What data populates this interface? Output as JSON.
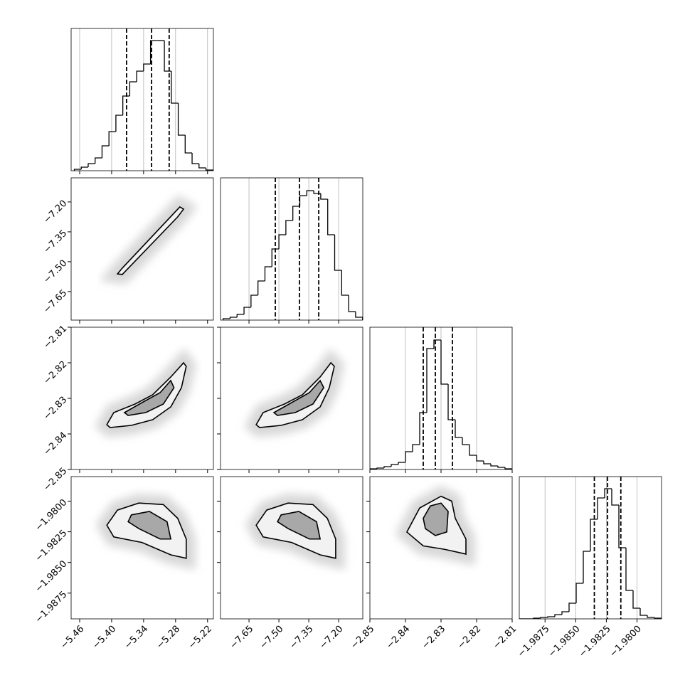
{
  "chart_data": {
    "type": "corner",
    "color": "#000000",
    "params": [
      {
        "lim": [
          -5.476,
          -5.209
        ],
        "ticks": [
          {
            "value": -5.46,
            "label": "−5.46"
          },
          {
            "value": -5.4,
            "label": "−5.40"
          },
          {
            "value": -5.34,
            "label": "−5.34"
          },
          {
            "value": -5.28,
            "label": "−5.28"
          },
          {
            "value": -5.22,
            "label": "−5.22"
          }
        ],
        "hist_ylim": [
          0,
          200
        ],
        "bins": [
          -5.47,
          -5.457,
          -5.444,
          -5.431,
          -5.418,
          -5.405,
          -5.392,
          -5.379,
          -5.366,
          -5.353,
          -5.34,
          -5.327,
          -5.314,
          -5.301,
          -5.288,
          -5.275,
          -5.262,
          -5.249,
          -5.236,
          -5.223,
          -5.21
        ],
        "values": [
          2,
          5,
          10,
          18,
          35,
          55,
          78,
          105,
          125,
          140,
          150,
          183,
          183,
          140,
          95,
          50,
          25,
          10,
          4,
          1
        ],
        "quantiles": [
          -5.372,
          -5.325,
          -5.292
        ]
      },
      {
        "lim": [
          -7.793,
          -7.079
        ],
        "ticks": [
          {
            "value": -7.65,
            "label": "−7.65"
          },
          {
            "value": -7.5,
            "label": "−7.50"
          },
          {
            "value": -7.35,
            "label": "−7.35"
          },
          {
            "value": -7.2,
            "label": "−7.20"
          }
        ],
        "hist_ylim": [
          0,
          200
        ],
        "bins": [
          -7.78,
          -7.745,
          -7.71,
          -7.675,
          -7.64,
          -7.605,
          -7.57,
          -7.535,
          -7.5,
          -7.465,
          -7.43,
          -7.395,
          -7.36,
          -7.325,
          -7.29,
          -7.255,
          -7.22,
          -7.185,
          -7.15,
          -7.115,
          -7.08
        ],
        "values": [
          2,
          4,
          8,
          18,
          35,
          55,
          75,
          100,
          120,
          140,
          160,
          175,
          182,
          178,
          170,
          120,
          70,
          35,
          12,
          4
        ],
        "quantiles": [
          -7.518,
          -7.397,
          -7.3
        ]
      },
      {
        "lim": [
          -2.85,
          -2.81
        ],
        "ticks": [
          {
            "value": -2.85,
            "label": "−2.85"
          },
          {
            "value": -2.84,
            "label": "−2.84"
          },
          {
            "value": -2.83,
            "label": "−2.83"
          },
          {
            "value": -2.82,
            "label": "−2.82"
          },
          {
            "value": -2.81,
            "label": "−2.81"
          }
        ],
        "hist_ylim": [
          0,
          200
        ],
        "bins": [
          -2.85,
          -2.848,
          -2.846,
          -2.844,
          -2.842,
          -2.84,
          -2.838,
          -2.836,
          -2.834,
          -2.832,
          -2.83,
          -2.828,
          -2.826,
          -2.824,
          -2.822,
          -2.82,
          -2.818,
          -2.816,
          -2.814,
          -2.812,
          -2.81
        ],
        "values": [
          1,
          2,
          4,
          7,
          10,
          25,
          35,
          80,
          170,
          182,
          120,
          70,
          45,
          35,
          20,
          12,
          8,
          5,
          3,
          1
        ],
        "quantiles": [
          -2.835,
          -2.8316,
          -2.8268
        ]
      },
      {
        "lim": [
          -1.9896,
          -1.978
        ],
        "ticks": [
          {
            "value": -1.9875,
            "label": "−1.9875"
          },
          {
            "value": -1.985,
            "label": "−1.9850"
          },
          {
            "value": -1.9825,
            "label": "−1.9825"
          },
          {
            "value": -1.98,
            "label": "−1.9800"
          }
        ],
        "hist_ylim": [
          0,
          200
        ],
        "bins": [
          -1.9896,
          -1.98902,
          -1.98844,
          -1.98786,
          -1.98728,
          -1.9867,
          -1.98612,
          -1.98554,
          -1.98496,
          -1.98438,
          -1.9838,
          -1.98322,
          -1.98264,
          -1.98206,
          -1.98148,
          -1.9809,
          -1.98032,
          -1.97974,
          -1.97916,
          -1.97858,
          -1.978
        ],
        "values": [
          0,
          0,
          1,
          2,
          3,
          6,
          10,
          22,
          50,
          95,
          140,
          170,
          183,
          160,
          100,
          40,
          15,
          5,
          2,
          1
        ],
        "quantiles": [
          -1.98348,
          -1.9824,
          -1.98132
        ]
      }
    ],
    "pairs": [
      [
        {
          "contours": [
            {
              "x": [
                -5.389,
                -5.38,
                -5.272,
                -5.265,
                -5.276,
                -5.38
              ],
              "y": [
                -7.561,
                -7.532,
                -7.225,
                -7.236,
                -7.275,
                -7.564
              ]
            }
          ]
        }
      ],
      [
        {
          "contours": [
            {
              "x": [
                -5.409,
                -5.396,
                -5.356,
                -5.323,
                -5.289,
                -5.265,
                -5.26,
                -5.269,
                -5.289,
                -5.323,
                -5.363,
                -5.403
              ],
              "y": [
                -2.8374,
                -2.834,
                -2.8316,
                -2.829,
                -2.824,
                -2.82,
                -2.821,
                -2.827,
                -2.8324,
                -2.836,
                -2.8376,
                -2.8382
              ]
            },
            {
              "x": [
                -5.376,
                -5.343,
                -5.309,
                -5.289,
                -5.283,
                -5.303,
                -5.336,
                -5.369
              ],
              "y": [
                -2.834,
                -2.8312,
                -2.8284,
                -2.825,
                -2.827,
                -2.8316,
                -2.834,
                -2.8348
              ]
            }
          ]
        },
        {
          "contours": [
            {
              "x": [
                -7.614,
                -7.579,
                -7.472,
                -7.382,
                -7.293,
                -7.239,
                -7.222,
                -7.247,
                -7.293,
                -7.382,
                -7.489,
                -7.597
              ],
              "y": [
                -2.8374,
                -2.834,
                -2.8316,
                -2.829,
                -2.824,
                -2.82,
                -2.821,
                -2.827,
                -2.8324,
                -2.836,
                -2.8376,
                -2.8382
              ]
            },
            {
              "x": [
                -7.525,
                -7.436,
                -7.347,
                -7.293,
                -7.275,
                -7.329,
                -7.418,
                -7.507
              ],
              "y": [
                -2.834,
                -2.8312,
                -2.8284,
                -2.825,
                -2.827,
                -2.8316,
                -2.834,
                -2.8348
              ]
            }
          ]
        }
      ],
      [
        {
          "contours": [
            {
              "x": [
                -5.409,
                -5.389,
                -5.349,
                -5.303,
                -5.276,
                -5.26,
                -5.26,
                -5.289,
                -5.343,
                -5.396
              ],
              "y": [
                -1.98196,
                -1.98073,
                -1.98016,
                -1.98028,
                -1.9814,
                -1.98309,
                -1.98466,
                -1.98438,
                -1.98337,
                -1.98292
              ]
            },
            {
              "x": [
                -5.363,
                -5.329,
                -5.296,
                -5.289,
                -5.309,
                -5.349,
                -5.369
              ],
              "y": [
                -1.98112,
                -1.98084,
                -1.98168,
                -1.98309,
                -1.98309,
                -1.98224,
                -1.98168
              ]
            }
          ]
        },
        {
          "contours": [
            {
              "x": [
                -7.614,
                -7.561,
                -7.454,
                -7.329,
                -7.257,
                -7.215,
                -7.215,
                -7.293,
                -7.436,
                -7.579
              ],
              "y": [
                -1.98196,
                -1.98073,
                -1.98016,
                -1.98028,
                -1.9814,
                -1.98309,
                -1.98466,
                -1.98438,
                -1.98337,
                -1.98292
              ]
            },
            {
              "x": [
                -7.489,
                -7.4,
                -7.311,
                -7.293,
                -7.347,
                -7.454,
                -7.507
              ],
              "y": [
                -1.98112,
                -1.98084,
                -1.98168,
                -1.98309,
                -1.98309,
                -1.98224,
                -1.98168
              ]
            }
          ]
        },
        {
          "contours": [
            {
              "x": [
                -2.8396,
                -2.836,
                -2.83,
                -2.827,
                -2.826,
                -2.823,
                -2.823,
                -2.829,
                -2.835
              ],
              "y": [
                -1.98252,
                -1.98056,
                -1.9796,
                -1.98,
                -1.9814,
                -1.98309,
                -1.98432,
                -1.98393,
                -1.98365
              ]
            },
            {
              "x": [
                -2.835,
                -2.833,
                -2.83,
                -2.828,
                -2.8284,
                -2.8316,
                -2.8344
              ],
              "y": [
                -1.9814,
                -1.98039,
                -1.98016,
                -1.98084,
                -1.98252,
                -1.98281,
                -1.98224
              ]
            }
          ]
        }
      ]
    ]
  }
}
